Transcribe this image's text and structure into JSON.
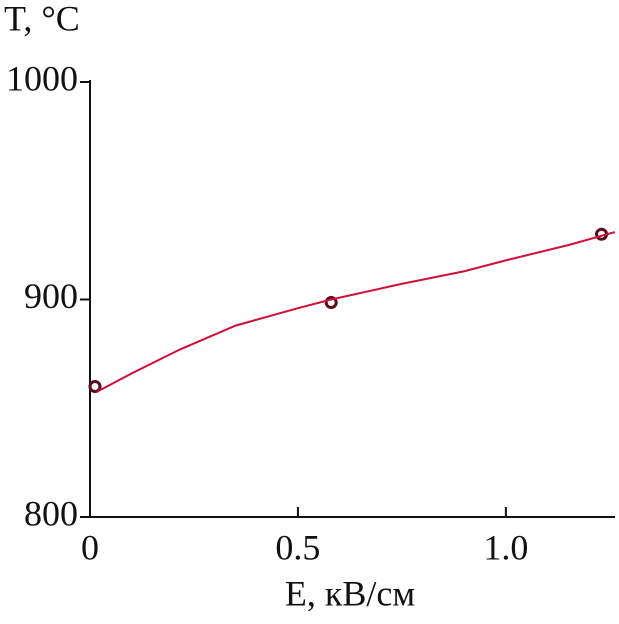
{
  "chart_data": {
    "type": "scatter",
    "ylabel": "T, °C",
    "xlabel": "E, кВ/см",
    "xlim": [
      0,
      1.26
    ],
    "ylim": [
      800,
      1000
    ],
    "xticks": [
      0,
      0.5,
      {
        "value": 1,
        "label": "1.0"
      }
    ],
    "yticks": [
      800,
      900,
      1000
    ],
    "series": [
      {
        "style": "markers",
        "color": "#5a0a1a",
        "x": [
          0.012,
          0.58,
          1.23
        ],
        "values": [
          860,
          898.6,
          930
        ]
      },
      {
        "style": "line",
        "color": "#d0103a",
        "x": [
          0.017,
          0.1,
          0.216,
          0.35,
          0.5,
          0.58,
          0.745,
          0.9,
          1.0,
          1.15,
          1.262
        ],
        "values": [
          857.6,
          866,
          877,
          888,
          896,
          900,
          907,
          913,
          918,
          925,
          931
        ]
      }
    ]
  }
}
